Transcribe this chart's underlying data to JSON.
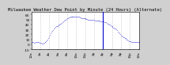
{
  "title": "Milwaukee Weather Dew Point by Minute (24 Hours) (Alternate)",
  "bg_color": "#d0d0d0",
  "plot_bg_color": "#ffffff",
  "line_color": "#0000cc",
  "ylim": [
    -10,
    65
  ],
  "xlim": [
    0,
    1440
  ],
  "yticks": [
    -10,
    0,
    10,
    20,
    30,
    40,
    50,
    60
  ],
  "ytick_labels": [
    "-10",
    "0",
    "10",
    "20",
    "30",
    "40",
    "50",
    "60"
  ],
  "xtick_positions": [
    0,
    120,
    240,
    360,
    480,
    600,
    720,
    840,
    960,
    1080,
    1200,
    1320,
    1440
  ],
  "xtick_labels": [
    "12a",
    "2a",
    "4a",
    "6a",
    "8a",
    "10a",
    "12p",
    "2p",
    "4p",
    "6p",
    "8p",
    "10p",
    "12a"
  ],
  "vline_positions": [
    120,
    240,
    360,
    480,
    600,
    720,
    840,
    960,
    1080,
    1200,
    1320
  ],
  "data_x": [
    0,
    10,
    20,
    30,
    40,
    50,
    60,
    70,
    80,
    90,
    100,
    110,
    120,
    130,
    140,
    150,
    160,
    170,
    180,
    190,
    200,
    210,
    220,
    230,
    240,
    250,
    260,
    270,
    280,
    290,
    300,
    310,
    320,
    330,
    340,
    350,
    360,
    370,
    380,
    390,
    400,
    410,
    420,
    430,
    440,
    450,
    460,
    470,
    480,
    490,
    500,
    510,
    520,
    530,
    540,
    550,
    560,
    570,
    580,
    590,
    600,
    610,
    620,
    630,
    640,
    650,
    660,
    670,
    680,
    690,
    700,
    710,
    720,
    730,
    740,
    750,
    760,
    770,
    780,
    790,
    800,
    810,
    820,
    830,
    840,
    850,
    860,
    870,
    880,
    890,
    900,
    910,
    920,
    930,
    940,
    950,
    960,
    970,
    980,
    990,
    1000,
    1010,
    1020,
    1030,
    1040,
    1050,
    1060,
    1070,
    1080,
    1090,
    1100,
    1110,
    1120,
    1130,
    1140,
    1150,
    1160,
    1170,
    1180,
    1190,
    1200,
    1210,
    1220,
    1230,
    1240,
    1250,
    1260,
    1270,
    1280,
    1290,
    1300,
    1310,
    1320,
    1330,
    1340,
    1350,
    1360,
    1370,
    1380,
    1390,
    1400,
    1410,
    1420,
    1430,
    1440
  ],
  "data_y": [
    5,
    5,
    4,
    4,
    3,
    3,
    4,
    5,
    5,
    4,
    4,
    3,
    3,
    3,
    2,
    2,
    2,
    3,
    4,
    5,
    6,
    8,
    10,
    13,
    16,
    19,
    22,
    25,
    27,
    29,
    31,
    33,
    35,
    36,
    37,
    37,
    38,
    39,
    40,
    41,
    42,
    43,
    44,
    46,
    48,
    49,
    50,
    51,
    52,
    53,
    54,
    54,
    55,
    55,
    55,
    56,
    56,
    56,
    56,
    56,
    56,
    56,
    56,
    55,
    55,
    54,
    54,
    53,
    53,
    53,
    52,
    52,
    52,
    51,
    51,
    51,
    50,
    50,
    50,
    50,
    49,
    49,
    49,
    49,
    49,
    48,
    48,
    48,
    47,
    47,
    47,
    47,
    47,
    46,
    46,
    46,
    46,
    46,
    45,
    45,
    44,
    43,
    42,
    41,
    40,
    39,
    38,
    37,
    36,
    35,
    34,
    33,
    32,
    31,
    30,
    28,
    26,
    24,
    22,
    20,
    18,
    17,
    16,
    15,
    14,
    13,
    12,
    11,
    10,
    9,
    8,
    7,
    6,
    6,
    5,
    5,
    4,
    4,
    4,
    4,
    5,
    5,
    5,
    5,
    5
  ],
  "marker_size": 0.8,
  "title_fontsize": 4,
  "tick_fontsize": 3,
  "vline_color": "#999999",
  "vline_style": ":",
  "vline_lw": 0.4,
  "special_vline_x": 960,
  "special_vline_color": "#0000cc",
  "special_vline_lw": 0.8
}
